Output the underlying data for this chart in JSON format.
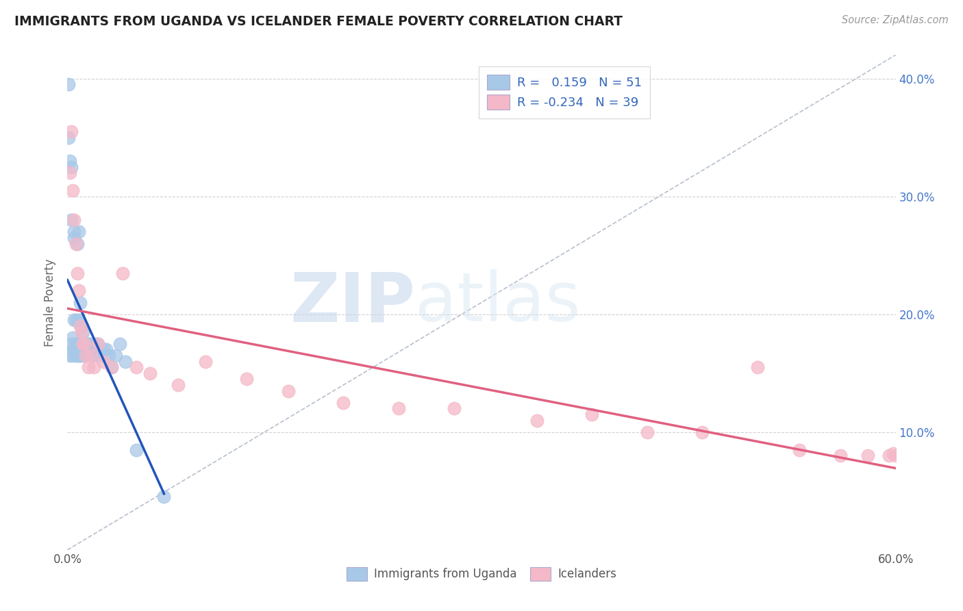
{
  "title": "IMMIGRANTS FROM UGANDA VS ICELANDER FEMALE POVERTY CORRELATION CHART",
  "source": "Source: ZipAtlas.com",
  "ylabel": "Female Poverty",
  "watermark_zip": "ZIP",
  "watermark_atlas": "atlas",
  "r_uganda": 0.159,
  "n_uganda": 51,
  "r_icelander": -0.234,
  "n_icelander": 39,
  "xlim": [
    0.0,
    0.6
  ],
  "ylim": [
    0.0,
    0.42
  ],
  "yticks": [
    0.0,
    0.1,
    0.2,
    0.3,
    0.4
  ],
  "color_uganda": "#a8c8e8",
  "color_icelander": "#f4b8c8",
  "line_color_uganda": "#2255bb",
  "line_color_icelander": "#e06080",
  "background_color": "#ffffff",
  "grid_color": "#cccccc",
  "uganda_x": [
    0.001,
    0.001,
    0.002,
    0.002,
    0.003,
    0.003,
    0.003,
    0.004,
    0.004,
    0.004,
    0.005,
    0.005,
    0.005,
    0.005,
    0.006,
    0.006,
    0.006,
    0.007,
    0.007,
    0.007,
    0.008,
    0.008,
    0.008,
    0.009,
    0.009,
    0.009,
    0.01,
    0.01,
    0.01,
    0.011,
    0.011,
    0.012,
    0.012,
    0.013,
    0.014,
    0.015,
    0.016,
    0.017,
    0.018,
    0.02,
    0.022,
    0.024,
    0.026,
    0.028,
    0.03,
    0.032,
    0.035,
    0.038,
    0.042,
    0.05,
    0.07
  ],
  "uganda_y": [
    0.395,
    0.35,
    0.33,
    0.165,
    0.325,
    0.28,
    0.175,
    0.17,
    0.165,
    0.18,
    0.27,
    0.265,
    0.195,
    0.17,
    0.195,
    0.175,
    0.165,
    0.26,
    0.175,
    0.165,
    0.27,
    0.195,
    0.165,
    0.21,
    0.175,
    0.165,
    0.19,
    0.175,
    0.165,
    0.185,
    0.17,
    0.175,
    0.165,
    0.17,
    0.175,
    0.175,
    0.175,
    0.17,
    0.165,
    0.175,
    0.175,
    0.165,
    0.17,
    0.17,
    0.165,
    0.155,
    0.165,
    0.175,
    0.16,
    0.085,
    0.045
  ],
  "icelander_x": [
    0.002,
    0.003,
    0.004,
    0.005,
    0.006,
    0.007,
    0.008,
    0.009,
    0.01,
    0.011,
    0.012,
    0.013,
    0.015,
    0.017,
    0.019,
    0.022,
    0.026,
    0.032,
    0.04,
    0.05,
    0.06,
    0.08,
    0.1,
    0.13,
    0.16,
    0.2,
    0.24,
    0.28,
    0.34,
    0.38,
    0.42,
    0.46,
    0.5,
    0.53,
    0.56,
    0.58,
    0.595,
    0.598,
    0.6
  ],
  "icelander_y": [
    0.32,
    0.355,
    0.305,
    0.28,
    0.26,
    0.235,
    0.22,
    0.19,
    0.185,
    0.175,
    0.175,
    0.165,
    0.155,
    0.165,
    0.155,
    0.175,
    0.16,
    0.155,
    0.235,
    0.155,
    0.15,
    0.14,
    0.16,
    0.145,
    0.135,
    0.125,
    0.12,
    0.12,
    0.11,
    0.115,
    0.1,
    0.1,
    0.155,
    0.085,
    0.08,
    0.08,
    0.08,
    0.082,
    0.08
  ]
}
